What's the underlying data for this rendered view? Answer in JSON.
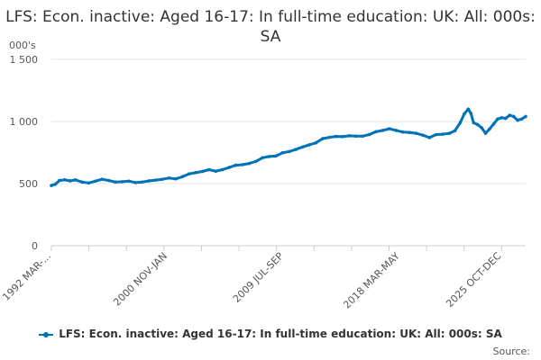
{
  "chart_data": {
    "type": "line",
    "title": "LFS: Econ. inactive: Aged 16-17: In full-time education: UK: All: 000s: SA",
    "ylabel": "000's",
    "xlabel": "",
    "ylim": [
      0,
      1500
    ],
    "yticks": [
      0,
      500,
      1000,
      1500
    ],
    "ytick_labels": [
      "0",
      "500",
      "1 000",
      "1 500"
    ],
    "xtick_labels": [
      "1992 MAR-...",
      "2000 NOV-JAN",
      "2009 JUL-SEP",
      "2018 MAR-MAY",
      "2025 OCT-DEC"
    ],
    "x_range": [
      1992.2,
      2025.9
    ],
    "xtick_positions": [
      1992.2,
      2000.9,
      2009.6,
      2018.3,
      2025.9
    ],
    "grid": true,
    "legend_position": "bottom",
    "series": [
      {
        "name": "LFS: Econ. inactive: Aged 16-17: In full-time education: UK: All: 000s: SA",
        "color": "#0072b9",
        "points": [
          [
            1992.2,
            485
          ],
          [
            1992.5,
            495
          ],
          [
            1992.8,
            525
          ],
          [
            1993.2,
            530
          ],
          [
            1993.6,
            522
          ],
          [
            1994.0,
            530
          ],
          [
            1994.5,
            512
          ],
          [
            1995.0,
            505
          ],
          [
            1995.5,
            520
          ],
          [
            1996.0,
            535
          ],
          [
            1996.5,
            525
          ],
          [
            1997.0,
            512
          ],
          [
            1997.5,
            515
          ],
          [
            1998.0,
            520
          ],
          [
            1998.5,
            508
          ],
          [
            1999.0,
            512
          ],
          [
            1999.5,
            522
          ],
          [
            2000.0,
            528
          ],
          [
            2000.5,
            535
          ],
          [
            2001.0,
            545
          ],
          [
            2001.5,
            538
          ],
          [
            2002.0,
            555
          ],
          [
            2002.5,
            578
          ],
          [
            2003.0,
            588
          ],
          [
            2003.5,
            598
          ],
          [
            2004.0,
            612
          ],
          [
            2004.5,
            600
          ],
          [
            2005.0,
            612
          ],
          [
            2005.5,
            630
          ],
          [
            2006.0,
            648
          ],
          [
            2006.5,
            652
          ],
          [
            2007.0,
            662
          ],
          [
            2007.5,
            678
          ],
          [
            2008.0,
            708
          ],
          [
            2008.5,
            718
          ],
          [
            2009.0,
            722
          ],
          [
            2009.5,
            748
          ],
          [
            2010.0,
            758
          ],
          [
            2010.5,
            775
          ],
          [
            2011.0,
            795
          ],
          [
            2011.5,
            812
          ],
          [
            2012.0,
            828
          ],
          [
            2012.5,
            862
          ],
          [
            2013.0,
            872
          ],
          [
            2013.5,
            880
          ],
          [
            2014.0,
            878
          ],
          [
            2014.5,
            885
          ],
          [
            2015.0,
            882
          ],
          [
            2015.5,
            882
          ],
          [
            2016.0,
            895
          ],
          [
            2016.5,
            918
          ],
          [
            2017.0,
            928
          ],
          [
            2017.5,
            942
          ],
          [
            2018.0,
            928
          ],
          [
            2018.5,
            915
          ],
          [
            2019.0,
            912
          ],
          [
            2019.5,
            905
          ],
          [
            2020.0,
            890
          ],
          [
            2020.5,
            870
          ],
          [
            2021.0,
            895
          ],
          [
            2021.5,
            898
          ],
          [
            2022.0,
            905
          ],
          [
            2022.4,
            925
          ],
          [
            2022.8,
            990
          ],
          [
            2023.1,
            1060
          ],
          [
            2023.4,
            1100
          ],
          [
            2023.6,
            1065
          ],
          [
            2023.8,
            990
          ],
          [
            2024.1,
            975
          ],
          [
            2024.4,
            950
          ],
          [
            2024.7,
            905
          ],
          [
            2025.0,
            940
          ],
          [
            2025.3,
            980
          ],
          [
            2025.6,
            1020
          ],
          [
            2025.9,
            1030
          ],
          [
            2026.2,
            1025
          ],
          [
            2026.5,
            1050
          ],
          [
            2026.8,
            1040
          ],
          [
            2027.1,
            1010
          ],
          [
            2027.4,
            1020
          ],
          [
            2027.7,
            1040
          ]
        ]
      }
    ],
    "source_label": "Source:"
  }
}
